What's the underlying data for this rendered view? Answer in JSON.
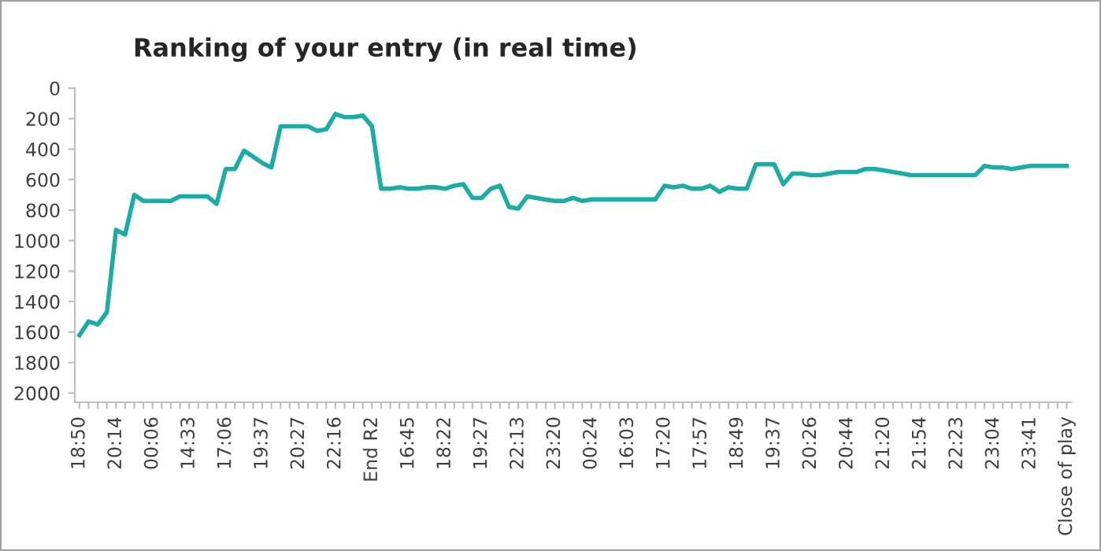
{
  "chart_data": {
    "type": "line",
    "title": "Ranking of your entry (in real time)",
    "categories": [
      "18:50",
      null,
      null,
      null,
      "20:14",
      null,
      null,
      null,
      "00:06",
      null,
      null,
      null,
      "14:33",
      null,
      null,
      null,
      "17:06",
      null,
      null,
      null,
      "19:37",
      null,
      null,
      null,
      "20:27",
      null,
      null,
      null,
      "22:16",
      null,
      null,
      null,
      "End R2",
      null,
      null,
      null,
      "16:45",
      null,
      null,
      null,
      "18:22",
      null,
      null,
      null,
      "19:27",
      null,
      null,
      null,
      "22:13",
      null,
      null,
      null,
      "23:20",
      null,
      null,
      null,
      "00:24",
      null,
      null,
      null,
      "16:03",
      null,
      null,
      null,
      "17:20",
      null,
      null,
      null,
      "17:57",
      null,
      null,
      null,
      "18:49",
      null,
      null,
      null,
      "19:37",
      null,
      null,
      null,
      "20:26",
      null,
      null,
      null,
      "20:44",
      null,
      null,
      null,
      "21:20",
      null,
      null,
      null,
      "21:54",
      null,
      null,
      null,
      "22:23",
      null,
      null,
      null,
      "23:04",
      null,
      null,
      null,
      "23:41",
      null,
      null,
      null,
      "Close of play"
    ],
    "series": [
      {
        "color": "#1aada5",
        "values": [
          1620,
          1530,
          1550,
          1470,
          930,
          960,
          700,
          740,
          740,
          740,
          740,
          710,
          710,
          710,
          710,
          760,
          530,
          530,
          410,
          450,
          490,
          520,
          250,
          250,
          250,
          250,
          280,
          270,
          170,
          190,
          190,
          180,
          250,
          660,
          660,
          650,
          660,
          660,
          650,
          650,
          660,
          640,
          630,
          720,
          720,
          660,
          640,
          780,
          790,
          710,
          720,
          730,
          740,
          740,
          720,
          740,
          730,
          730,
          730,
          730,
          730,
          730,
          730,
          730,
          640,
          650,
          640,
          660,
          660,
          640,
          680,
          650,
          660,
          660,
          500,
          500,
          500,
          630,
          560,
          560,
          570,
          570,
          560,
          550,
          550,
          550,
          530,
          530,
          540,
          550,
          560,
          570,
          570,
          570,
          570,
          570,
          570,
          570,
          570,
          510,
          520,
          520,
          530,
          520,
          510,
          510,
          510,
          510,
          510
        ]
      }
    ],
    "ylim": [
      2060,
      0
    ],
    "yticks": [
      0,
      200,
      400,
      600,
      800,
      1000,
      1200,
      1400,
      1600,
      1800,
      2000
    ],
    "grid": false,
    "marker": "none",
    "line_style": "solid"
  }
}
